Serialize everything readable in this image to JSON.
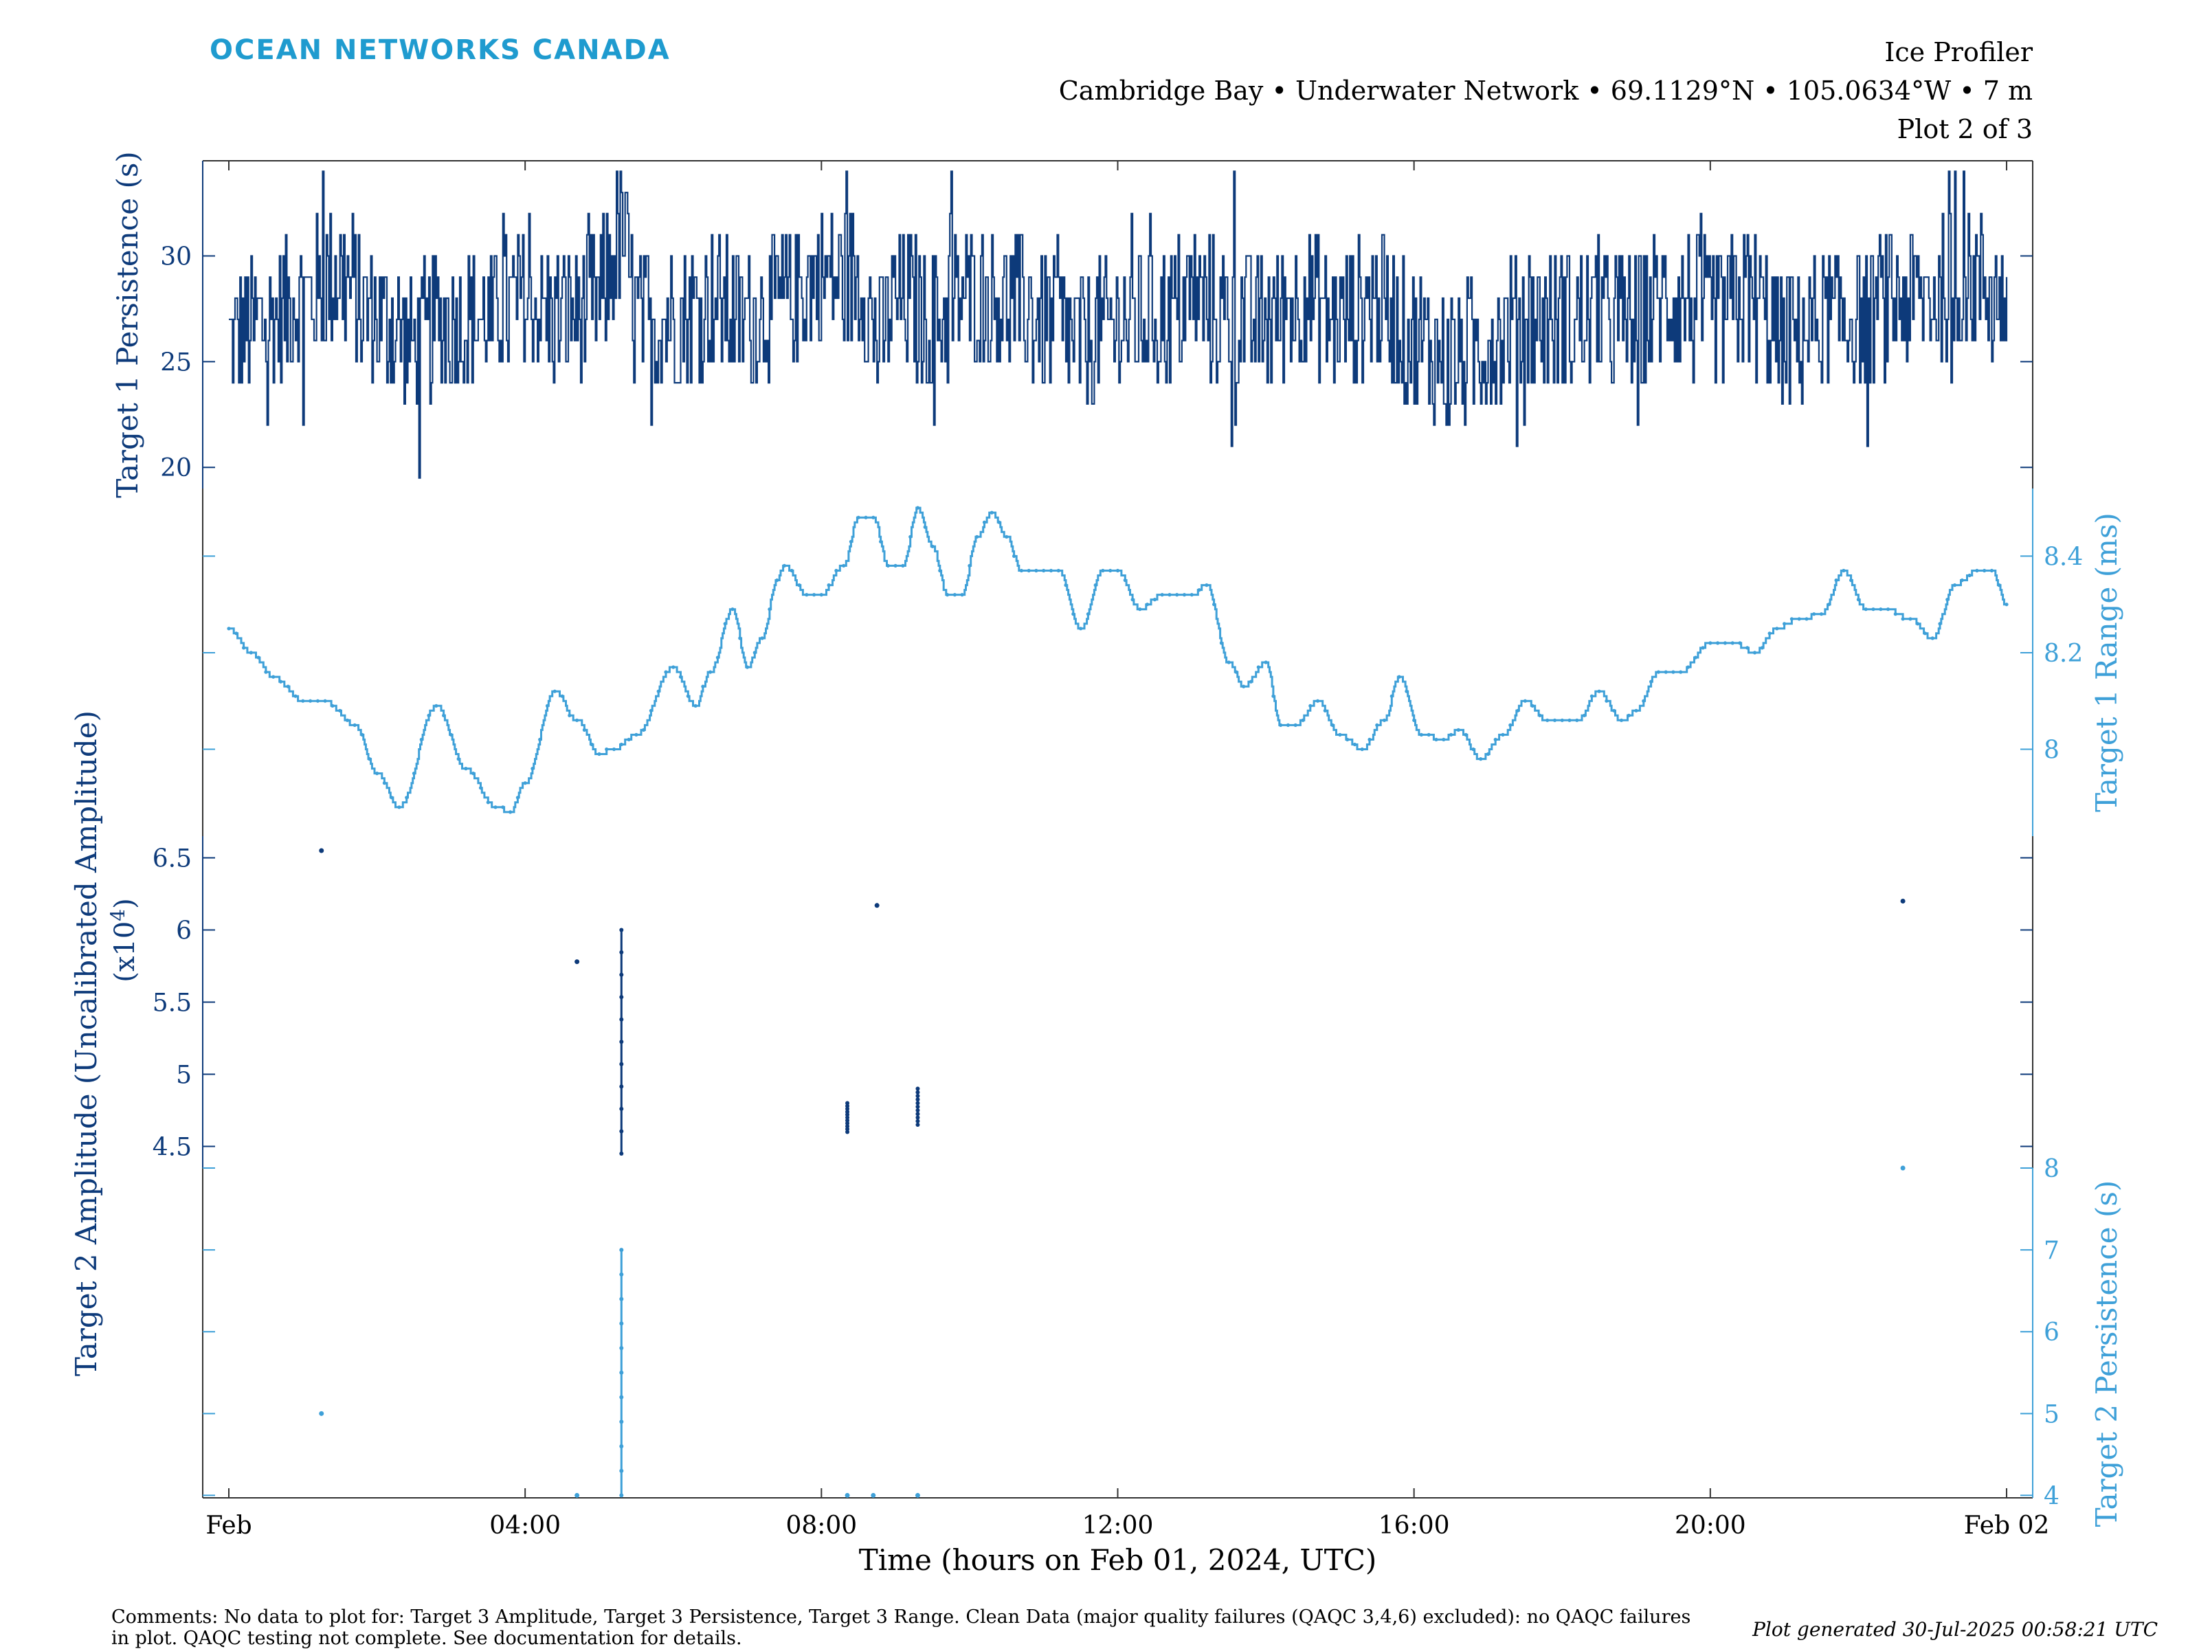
{
  "logo": "OCEAN NETWORKS CANADA",
  "header": {
    "title": "Ice Profiler",
    "location": "Cambridge Bay • Underwater Network • 69.1129°N • 105.0634°W • 7 m",
    "plot": "Plot 2 of 3"
  },
  "colors": {
    "dark": "#0d3a7a",
    "light": "#3ea0d8",
    "logo": "#1f9bcf"
  },
  "chart_data": {
    "type": "line",
    "xlabel": "Time (hours on Feb 01, 2024, UTC)",
    "xlim": [
      0,
      24
    ],
    "x_ticks": [
      {
        "x": 0,
        "label": "Feb"
      },
      {
        "x": 4,
        "label": "04:00"
      },
      {
        "x": 8,
        "label": "08:00"
      },
      {
        "x": 12,
        "label": "12:00"
      },
      {
        "x": 16,
        "label": "16:00"
      },
      {
        "x": 20,
        "label": "20:00"
      },
      {
        "x": 24,
        "label": "Feb 02"
      }
    ],
    "grid": false,
    "panels": [
      {
        "id": "p1",
        "axis_side": "left",
        "ylabel": "Target 1 Persistence (s)",
        "ylim": [
          19,
          34.5
        ],
        "yticks": [
          20,
          25,
          30
        ],
        "ytick_labels": [
          "20",
          "25",
          "30"
        ],
        "series": [
          {
            "name": "Target 1 Persistence (s)",
            "color": "#0d3a7a",
            "x": [
              0,
              0.5,
              1,
              1.5,
              2,
              2.5,
              3,
              3.5,
              4,
              4.5,
              5,
              5.3,
              5.5,
              6,
              6.5,
              7,
              7.5,
              8,
              8.5,
              8.8,
              9,
              9.5,
              10,
              10.5,
              11,
              11.5,
              12,
              12.5,
              13,
              13.5,
              14,
              14.5,
              15,
              15.5,
              16,
              16.5,
              17,
              17.5,
              18,
              18.5,
              19,
              19.5,
              20,
              20.5,
              21,
              21.5,
              22,
              22.5,
              23,
              23.5,
              24
            ],
            "y": [
              26,
              27,
              28,
              29,
              27,
              26,
              27,
              27,
              28,
              27,
              28,
              31,
              27,
              27,
              28,
              27,
              28,
              29,
              29,
              26,
              28,
              27,
              28,
              28,
              27,
              26,
              27,
              27,
              28,
              27,
              27,
              28,
              27,
              28,
              26,
              25,
              26,
              27,
              27,
              27,
              27,
              28,
              27,
              28,
              26,
              27,
              27,
              28,
              28,
              29,
              28
            ],
            "noise_amp": 3.5,
            "min": 19.5,
            "max": 34
          }
        ]
      },
      {
        "id": "p2",
        "axis_side": "right",
        "ylabel": "Target 1 Range (ms)",
        "ylim": [
          7.82,
          8.54
        ],
        "yticks": [
          7.8,
          8,
          8.2,
          8.4
        ],
        "ytick_labels": [
          "",
          "8",
          "8.2",
          "8.4"
        ],
        "series": [
          {
            "name": "Target 1 Range (ms)",
            "color": "#3ea0d8",
            "x": [
              0,
              0.3,
              0.6,
              1.0,
              1.3,
              1.7,
              2.0,
              2.3,
              2.8,
              3.2,
              3.6,
              3.8,
              4.0,
              4.4,
              4.7,
              5.0,
              5.2,
              5.5,
              6.0,
              6.3,
              6.5,
              6.8,
              7.0,
              7.2,
              7.4,
              7.5,
              7.8,
              8.0,
              8.3,
              8.5,
              8.7,
              8.9,
              9.1,
              9.3,
              9.5,
              9.7,
              9.9,
              10.1,
              10.3,
              10.5,
              10.7,
              10.9,
              11.2,
              11.5,
              11.8,
              12.0,
              12.3,
              12.6,
              13.0,
              13.2,
              13.5,
              13.7,
              14.0,
              14.2,
              14.4,
              14.7,
              15.0,
              15.3,
              15.6,
              15.8,
              16.1,
              16.4,
              16.6,
              16.9,
              17.2,
              17.5,
              17.8,
              18.2,
              18.5,
              18.8,
              19.0,
              19.3,
              19.6,
              20.0,
              20.3,
              20.6,
              20.9,
              21.2,
              21.5,
              21.8,
              22.1,
              22.4,
              22.7,
              23.0,
              23.3,
              23.6,
              23.8,
              24.0
            ],
            "y": [
              8.25,
              8.2,
              8.15,
              8.1,
              8.1,
              8.05,
              7.95,
              7.88,
              8.09,
              7.96,
              7.88,
              7.87,
              7.93,
              8.12,
              8.06,
              7.99,
              8.0,
              8.03,
              8.17,
              8.09,
              8.16,
              8.29,
              8.17,
              8.23,
              8.35,
              8.38,
              8.32,
              8.32,
              8.38,
              8.48,
              8.48,
              8.38,
              8.38,
              8.5,
              8.42,
              8.32,
              8.32,
              8.44,
              8.49,
              8.44,
              8.37,
              8.37,
              8.37,
              8.25,
              8.37,
              8.37,
              8.29,
              8.32,
              8.32,
              8.34,
              8.18,
              8.13,
              8.18,
              8.05,
              8.05,
              8.1,
              8.03,
              8.0,
              8.06,
              8.15,
              8.03,
              8.02,
              8.04,
              7.98,
              8.03,
              8.1,
              8.06,
              8.06,
              8.12,
              8.06,
              8.08,
              8.16,
              8.16,
              8.22,
              8.22,
              8.2,
              8.25,
              8.27,
              8.28,
              8.37,
              8.29,
              8.29,
              8.27,
              8.23,
              8.34,
              8.37,
              8.37,
              8.3
            ],
            "step_ms": 0.01,
            "steps_per_hour": 60
          }
        ]
      },
      {
        "id": "p3",
        "axis_side": "left",
        "ylabel": "Target 2 Amplitude (Uncalibrated Amplitude)",
        "ylabel2": "(x10",
        "ylabel2_exp": "4",
        "ylabel2_end": ")",
        "ylim": [
          4.35,
          6.65
        ],
        "yticks": [
          4.5,
          5,
          5.5,
          6,
          6.5
        ],
        "ytick_labels": [
          "4.5",
          "5",
          "5.5",
          "6",
          "6.5"
        ],
        "series": [
          {
            "name": "Target 2 Amplitude",
            "color": "#0d3a7a",
            "points": [
              {
                "x": 1.25,
                "y": 6.55
              },
              {
                "x": 4.7,
                "y": 5.78
              },
              {
                "x": 8.75,
                "y": 6.17
              },
              {
                "x": 22.6,
                "y": 6.2
              }
            ],
            "segments": [
              {
                "x": 5.3,
                "y0": 4.45,
                "y1": 6.0
              },
              {
                "x": 8.35,
                "y0": 4.6,
                "y1": 4.8
              },
              {
                "x": 9.3,
                "y0": 4.65,
                "y1": 4.9
              }
            ]
          }
        ]
      },
      {
        "id": "p4",
        "axis_side": "right",
        "ylabel": "Target 2 Persistence (s)",
        "ylim": [
          3.97,
          8.0
        ],
        "yticks": [
          4,
          5,
          6,
          7,
          8
        ],
        "ytick_labels": [
          "4",
          "5",
          "6",
          "7",
          "8"
        ],
        "series": [
          {
            "name": "Target 2 Persistence (s)",
            "color": "#3ea0d8",
            "points": [
              {
                "x": 1.25,
                "y": 5
              },
              {
                "x": 4.7,
                "y": 4
              },
              {
                "x": 8.35,
                "y": 4
              },
              {
                "x": 8.7,
                "y": 4
              },
              {
                "x": 9.3,
                "y": 4
              },
              {
                "x": 22.6,
                "y": 8
              }
            ],
            "segments": [
              {
                "x": 5.3,
                "y0": 4,
                "y1": 7
              }
            ]
          }
        ]
      }
    ]
  },
  "comments": "Comments: No data to plot for: Target 3 Amplitude, Target 3 Persistence, Target 3 Range. Clean Data (major quality failures (QAQC 3,4,6) excluded): no QAQC failures in plot. QAQC testing not complete. See documentation for details.",
  "generated": "Plot generated 30-Jul-2025 00:58:21 UTC"
}
